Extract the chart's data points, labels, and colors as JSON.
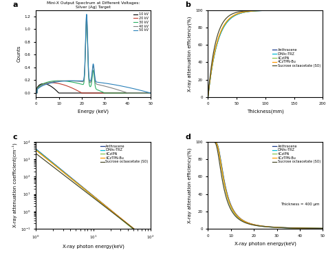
{
  "panel_a": {
    "label": "a",
    "title": "Mini-X Output Spectrum at Different Voltages:\nSilver (Ag) Target",
    "xlabel": "Energy (keV)",
    "ylabel": "Counts",
    "xlim": [
      0,
      50
    ],
    "voltages": [
      {
        "label": "10 kV",
        "color": "#000000",
        "max_e": 10,
        "amp": 0.38
      },
      {
        "label": "20 kV",
        "color": "#c0392b",
        "max_e": 20,
        "amp": 0.42
      },
      {
        "label": "30 kV",
        "color": "#27ae60",
        "max_e": 30,
        "amp": 0.5
      },
      {
        "label": "40 kV",
        "color": "#808080",
        "max_e": 40,
        "amp": 0.5
      },
      {
        "label": "50 kV",
        "color": "#2980b9",
        "max_e": 50,
        "amp": 0.5
      }
    ],
    "char_peak1_mu": 22.1,
    "char_peak1_sigma": 0.45,
    "char_peak1_amp": 1.05,
    "char_peak2_mu": 25.0,
    "char_peak2_sigma": 0.45,
    "char_peak2_amp": 0.28,
    "char_min_kv": 30
  },
  "panel_b": {
    "label": "b",
    "xlabel": "Thickness(mm)",
    "ylabel": "X-ray attenuation efficiency(%)",
    "xlim": [
      0,
      200
    ],
    "ylim": [
      0,
      100
    ],
    "xticks": [
      0,
      50,
      100,
      150,
      200
    ],
    "materials": [
      {
        "name": "Anthracene",
        "color": "#1a3a8a",
        "mu_cm": 0.6
      },
      {
        "name": "DMAc-TRZ",
        "color": "#00bcd4",
        "mu_cm": 0.6
      },
      {
        "name": "4CzIPN",
        "color": "#8bc34a",
        "mu_cm": 0.62
      },
      {
        "name": "4CzTPN-Bu",
        "color": "#ff9800",
        "mu_cm": 0.63
      },
      {
        "name": "Sucrose octaacetate (SO)",
        "color": "#4a4a2a",
        "mu_cm": 0.75
      }
    ]
  },
  "panel_c": {
    "label": "c",
    "xlabel": "X-ray photon energy(keV)",
    "ylabel": "X-ray attenuation coefficient(cm⁻¹)",
    "xlim": [
      1,
      100
    ],
    "ylim_log": [
      -1,
      4
    ],
    "materials": [
      {
        "name": "Anthracene",
        "color": "#1a3a8a",
        "mu1": 4000,
        "exp": -2.7
      },
      {
        "name": "DMAc-TRZ",
        "color": "#00bcd4",
        "mu1": 3800,
        "exp": -2.7
      },
      {
        "name": "4CzIPN",
        "color": "#8bc34a",
        "mu1": 3600,
        "exp": -2.7
      },
      {
        "name": "4CzTPN-Bu",
        "color": "#ff9800",
        "mu1": 3400,
        "exp": -2.65
      },
      {
        "name": "Sucrose octaacetate (SO)",
        "color": "#4a4a2a",
        "mu1": 2200,
        "exp": -2.55
      }
    ]
  },
  "panel_d": {
    "label": "d",
    "xlabel": "X-ray photon energy(keV)",
    "ylabel": "X-ray attenuation efficiency(%)",
    "xlim": [
      0,
      50
    ],
    "ylim": [
      0,
      100
    ],
    "annotation": "Thickness = 400 μm",
    "materials": [
      {
        "name": "Anthracene",
        "color": "#1a3a8a",
        "mu1": 4000,
        "exp": -2.7
      },
      {
        "name": "DMAc-TRZ",
        "color": "#00bcd4",
        "mu1": 3800,
        "exp": -2.7
      },
      {
        "name": "4CzIPN",
        "color": "#8bc34a",
        "mu1": 3600,
        "exp": -2.7
      },
      {
        "name": "4CzTPN-Bu",
        "color": "#ff9800",
        "mu1": 3400,
        "exp": -2.65
      },
      {
        "name": "Sucrose octaacetate (SO)",
        "color": "#4a4a2a",
        "mu1": 2200,
        "exp": -2.55
      }
    ],
    "thickness_cm": 0.04
  }
}
